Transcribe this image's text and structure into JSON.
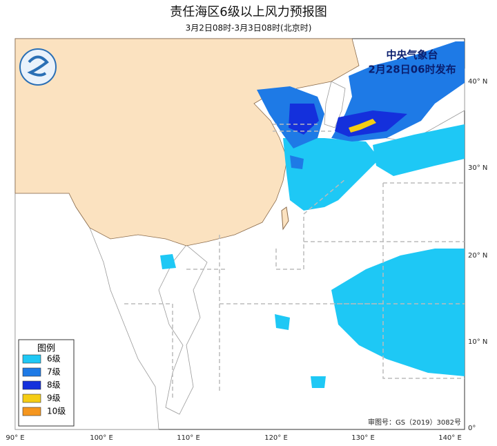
{
  "header": {
    "title": "责任海区6级以上风力预报图",
    "subtitle": "3月2日08时-3月3日08时(北京时)"
  },
  "issuer": {
    "name": "中央气象台",
    "time": "2月28日06时发布"
  },
  "legend": {
    "title": "图例",
    "items": [
      {
        "label": "6级",
        "color": "#1ec8f5"
      },
      {
        "label": "7级",
        "color": "#1e7ae6"
      },
      {
        "label": "8级",
        "color": "#1430dc"
      },
      {
        "label": "9级",
        "color": "#f5cd14"
      },
      {
        "label": "10级",
        "color": "#f5961e"
      }
    ]
  },
  "axes": {
    "lon_labels": [
      "90° E",
      "100° E",
      "110° E",
      "120° E",
      "130° E",
      "140° E"
    ],
    "lat_labels": [
      "40° N",
      "30° N",
      "20° N",
      "10° N",
      "0°"
    ]
  },
  "footer": {
    "approval": "审图号：GS（2019）3082号"
  }
}
